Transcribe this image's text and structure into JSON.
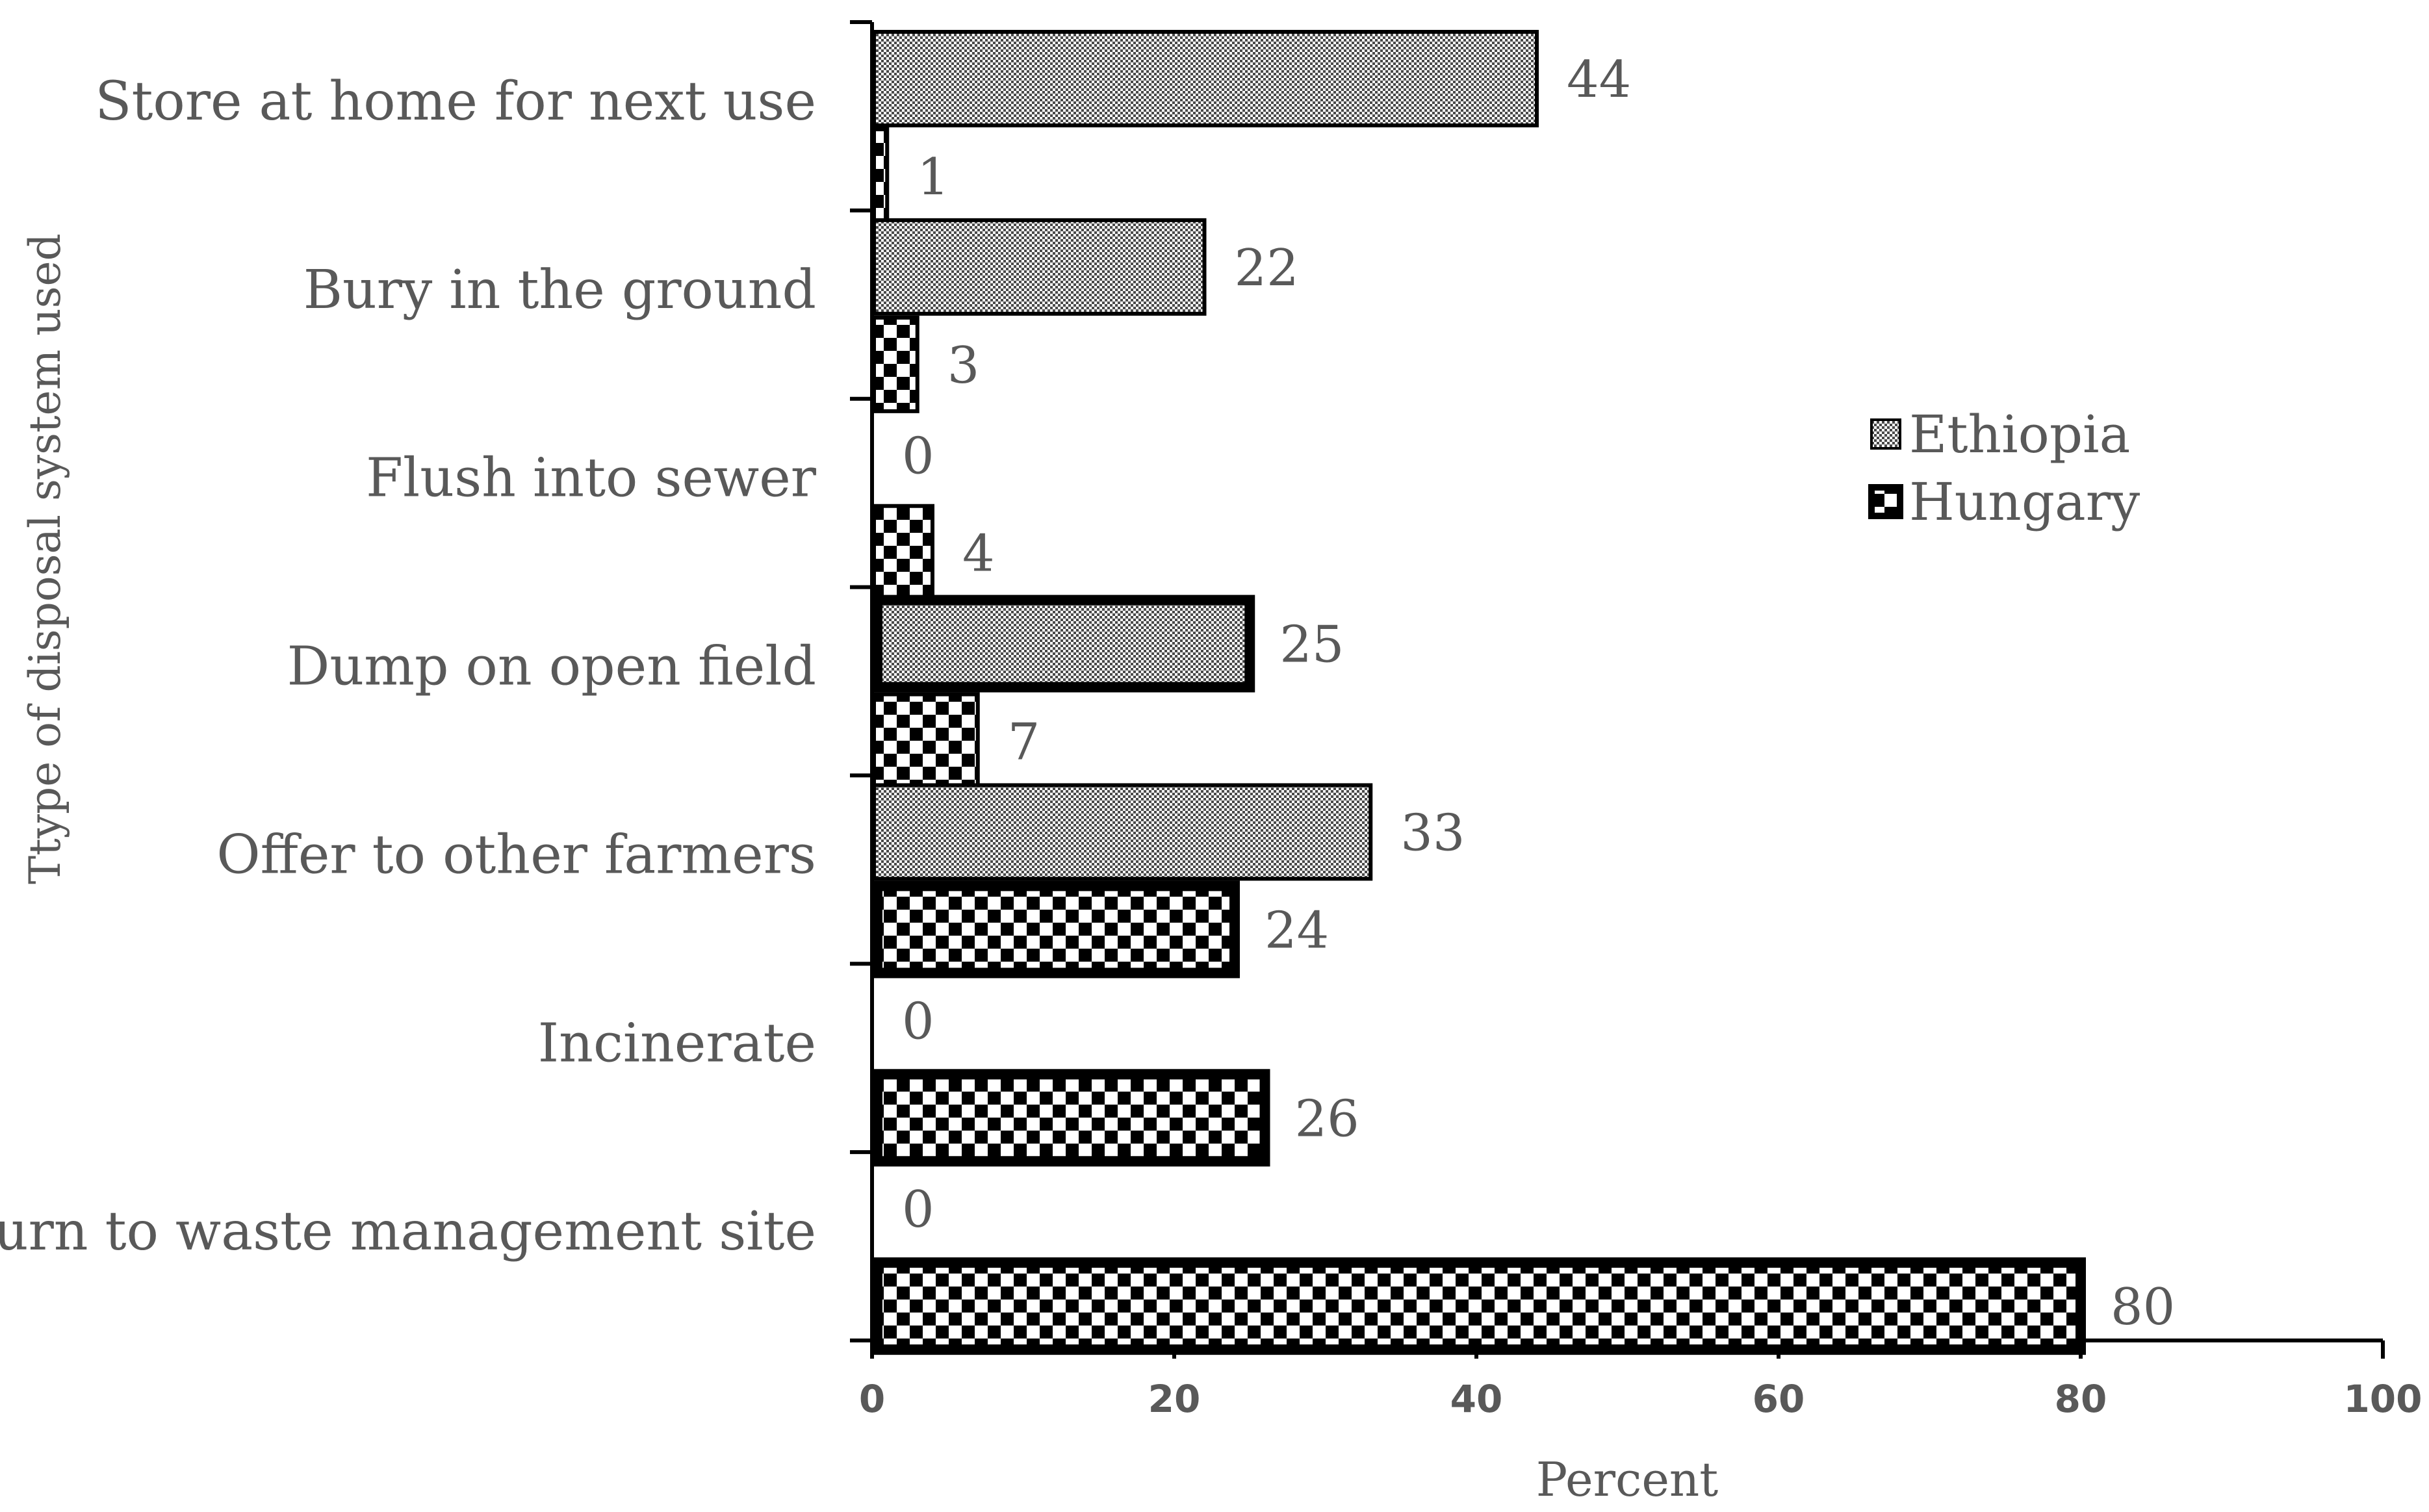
{
  "chart_data": {
    "type": "bar",
    "orientation": "horizontal",
    "categories": [
      "Store at home for next use",
      "Bury in the ground",
      "Flush into sewer",
      "Dump on open field",
      "Offer to other farmers",
      "Incinerate",
      "Return to waste management site"
    ],
    "series": [
      {
        "name": "Ethiopia",
        "values": [
          44,
          22,
          0,
          25,
          33,
          0,
          0
        ],
        "pattern": "fine-dots"
      },
      {
        "name": "Hungary",
        "values": [
          1,
          3,
          4,
          7,
          24,
          26,
          80
        ],
        "pattern": "checkerboard"
      }
    ],
    "xlabel": "Percent",
    "ylabel": "Ttype of disposal system used",
    "xlim": [
      0,
      100
    ],
    "xticks": [
      "0",
      "20",
      "40",
      "60",
      "80",
      "100"
    ],
    "legend_position": "right",
    "grid": false,
    "colors": {
      "text": "#595959",
      "bar_outline": "#000000",
      "pattern_dark": "#000000",
      "pattern_light": "#ffffff"
    }
  }
}
